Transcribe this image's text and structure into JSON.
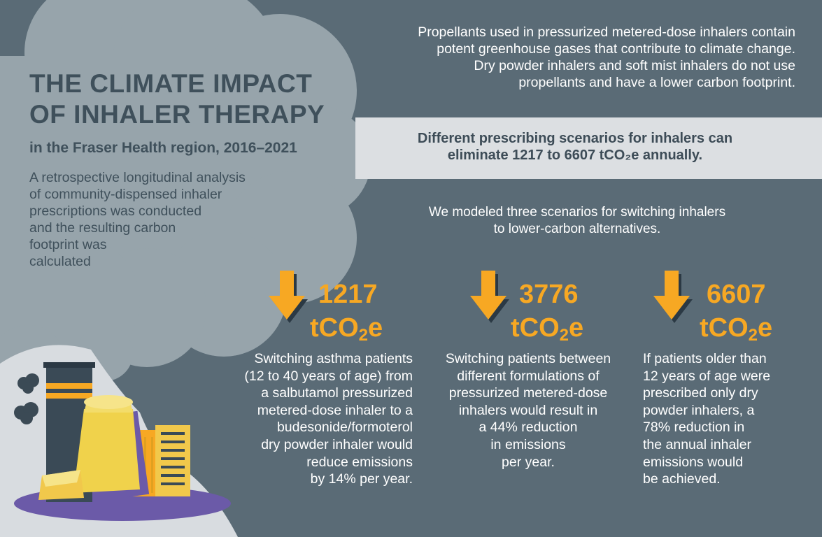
{
  "header": {
    "title_line1": "THE CLIMATE IMPACT",
    "title_line2": "OF INHALER THERAPY",
    "subtitle": "in the Fraser Health region, 2016–2021",
    "intro_lines": [
      "A retrospective longitudinal analysis",
      "of community-dispensed inhaler",
      "prescriptions was conducted",
      "and the resulting carbon",
      "footprint was",
      "calculated"
    ]
  },
  "propellants_lines": [
    "Propellants used in pressurized metered-dose inhalers contain",
    "potent greenhouse gases that contribute to climate change.",
    "Dry powder inhalers and soft mist inhalers do not use",
    "propellants and have a lower carbon footprint."
  ],
  "banner_lines": [
    "Different prescribing scenarios for inhalers can",
    "eliminate 1217 to 6607 tCO₂e annually."
  ],
  "modeled_lines": [
    "We modeled three scenarios for switching inhalers",
    "to lower-carbon alternatives."
  ],
  "scenarios": [
    {
      "value": "1217",
      "unit_main": "tCO",
      "unit_sub": "2",
      "unit_end": "e",
      "lines": [
        "Switching asthma patients",
        "(12 to 40 years of age) from",
        "a salbutamol pressurized",
        "metered-dose inhaler to a",
        "budesonide/formoterol",
        "dry powder inhaler would",
        "reduce emissions",
        "by 14% per year."
      ]
    },
    {
      "value": "3776",
      "unit_main": "tCO",
      "unit_sub": "2",
      "unit_end": "e",
      "lines": [
        "Switching patients between",
        "different formulations of",
        "pressurized metered-dose",
        "inhalers would result in",
        "a 44% reduction",
        "in emissions",
        "per year."
      ]
    },
    {
      "value": "6607",
      "unit_main": "tCO",
      "unit_sub": "2",
      "unit_end": "e",
      "lines": [
        "If patients older than",
        "12 years of age were",
        "prescribed only dry",
        "powder inhalers, a",
        "78% reduction in",
        "the annual inhaler",
        "emissions would",
        "be achieved."
      ]
    }
  ],
  "icons": {
    "arrow": "down-arrow-icon",
    "smoke": "smoke-cloud",
    "illustration": "inhaler-factory-illustration"
  },
  "colors": {
    "background": "#5a6b76",
    "cloud": "#97a4ab",
    "banner": "#dcdfe2",
    "accent": "#f7a823",
    "title": "#3f505b"
  }
}
